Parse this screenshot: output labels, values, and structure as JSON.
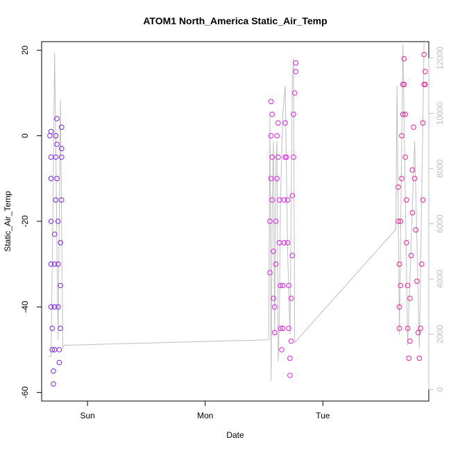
{
  "chart_data": {
    "type": "scatter",
    "title": "ATOM1 North_America Static_Air_Temp",
    "xlabel": "Date",
    "ylabel": "Static_Air_Temp",
    "x_ticks": [
      "Sun",
      "Mon",
      "Tue"
    ],
    "y_ticks": [
      -60,
      -40,
      -20,
      0,
      20
    ],
    "ylim": [
      -62,
      22
    ],
    "y2_ticks": [
      0,
      2000,
      4000,
      6000,
      8000,
      10000,
      12000
    ],
    "y2lim": [
      -420,
      12600
    ],
    "xlim_days": [
      -0.39,
      2.9
    ],
    "colors": {
      "flight1": "#7a1ff5",
      "flight2": "#e21aed",
      "flight3": "#f51b9b",
      "altitude_line": "#bfbfbf"
    },
    "series": [
      {
        "points": [
          [
            -0.32,
            0
          ],
          [
            -0.31,
            1
          ],
          [
            -0.31,
            -5
          ],
          [
            -0.31,
            -10
          ],
          [
            -0.31,
            -20
          ],
          [
            -0.31,
            -30
          ],
          [
            -0.31,
            -40
          ],
          [
            -0.3,
            -45
          ],
          [
            -0.3,
            -50
          ],
          [
            -0.29,
            -55
          ],
          [
            -0.29,
            -58
          ],
          [
            -0.28,
            -50
          ],
          [
            -0.28,
            -40
          ],
          [
            -0.28,
            -30
          ],
          [
            -0.28,
            -23
          ],
          [
            -0.27,
            -15
          ],
          [
            -0.27,
            -5
          ],
          [
            -0.27,
            0
          ],
          [
            -0.26,
            4
          ],
          [
            -0.26,
            -2
          ],
          [
            -0.26,
            -10
          ],
          [
            -0.25,
            -20
          ],
          [
            -0.25,
            -30
          ],
          [
            -0.25,
            -40
          ],
          [
            -0.24,
            -50
          ],
          [
            -0.24,
            -53
          ],
          [
            -0.23,
            -45
          ],
          [
            -0.23,
            -35
          ],
          [
            -0.23,
            -25
          ],
          [
            -0.22,
            -15
          ],
          [
            -0.22,
            -5
          ],
          [
            -0.22,
            2
          ],
          [
            -0.22,
            -3
          ]
        ]
      },
      {
        "points": [
          [
            1.55,
            -32
          ],
          [
            1.55,
            -20
          ],
          [
            1.56,
            -10
          ],
          [
            1.56,
            0
          ],
          [
            1.56,
            8
          ],
          [
            1.57,
            5
          ],
          [
            1.57,
            -5
          ],
          [
            1.57,
            -15
          ],
          [
            1.58,
            -27
          ],
          [
            1.58,
            -38
          ],
          [
            1.59,
            -46
          ],
          [
            1.59,
            -40
          ],
          [
            1.6,
            -30
          ],
          [
            1.6,
            -20
          ],
          [
            1.61,
            -10
          ],
          [
            1.61,
            0
          ],
          [
            1.62,
            3
          ],
          [
            1.62,
            -5
          ],
          [
            1.63,
            -15
          ],
          [
            1.63,
            -25
          ],
          [
            1.64,
            -35
          ],
          [
            1.64,
            -45
          ],
          [
            1.65,
            -50
          ],
          [
            1.66,
            -45
          ],
          [
            1.66,
            -35
          ],
          [
            1.67,
            -25
          ],
          [
            1.67,
            -15
          ],
          [
            1.68,
            -5
          ],
          [
            1.68,
            3
          ],
          [
            1.69,
            -5
          ],
          [
            1.7,
            -15
          ],
          [
            1.7,
            -25
          ],
          [
            1.71,
            -35
          ],
          [
            1.71,
            -45
          ],
          [
            1.72,
            -52
          ],
          [
            1.72,
            -56
          ],
          [
            1.73,
            -48
          ],
          [
            1.73,
            -38
          ],
          [
            1.74,
            -28
          ],
          [
            1.74,
            -14
          ],
          [
            1.75,
            -5
          ],
          [
            1.75,
            5
          ],
          [
            1.76,
            10
          ],
          [
            1.77,
            15
          ],
          [
            1.77,
            17
          ]
        ]
      },
      {
        "points": [
          [
            2.64,
            -12
          ],
          [
            2.64,
            -20
          ],
          [
            2.65,
            -30
          ],
          [
            2.65,
            -40
          ],
          [
            2.65,
            -45
          ],
          [
            2.66,
            -35
          ],
          [
            2.66,
            -20
          ],
          [
            2.67,
            -10
          ],
          [
            2.67,
            0
          ],
          [
            2.68,
            5
          ],
          [
            2.68,
            12
          ],
          [
            2.69,
            18
          ],
          [
            2.69,
            12
          ],
          [
            2.7,
            5
          ],
          [
            2.7,
            -5
          ],
          [
            2.71,
            -15
          ],
          [
            2.71,
            -25
          ],
          [
            2.72,
            -35
          ],
          [
            2.72,
            -45
          ],
          [
            2.73,
            -52
          ],
          [
            2.74,
            -48
          ],
          [
            2.74,
            -38
          ],
          [
            2.75,
            -28
          ],
          [
            2.76,
            -18
          ],
          [
            2.76,
            -8
          ],
          [
            2.77,
            2
          ],
          [
            2.78,
            -10
          ],
          [
            2.79,
            -22
          ],
          [
            2.8,
            -34
          ],
          [
            2.81,
            -46
          ],
          [
            2.82,
            -52
          ],
          [
            2.83,
            -45
          ],
          [
            2.84,
            -30
          ],
          [
            2.85,
            -15
          ],
          [
            2.85,
            3
          ],
          [
            2.86,
            12
          ],
          [
            2.86,
            19
          ],
          [
            2.87,
            15
          ],
          [
            2.87,
            12
          ]
        ]
      }
    ],
    "altitude_line": [
      [
        -0.33,
        1200
      ],
      [
        -0.31,
        1200
      ],
      [
        -0.29,
        8000
      ],
      [
        -0.28,
        12200
      ],
      [
        -0.27,
        9000
      ],
      [
        -0.26,
        5000
      ],
      [
        -0.25,
        1800
      ],
      [
        -0.23,
        10500
      ],
      [
        -0.21,
        1500
      ],
      [
        -0.2,
        1600
      ],
      [
        1.54,
        1800
      ],
      [
        1.55,
        10000
      ],
      [
        1.56,
        300
      ],
      [
        1.57,
        7000
      ],
      [
        1.58,
        9000
      ],
      [
        1.59,
        2000
      ],
      [
        1.6,
        8000
      ],
      [
        1.61,
        9000
      ],
      [
        1.62,
        1000
      ],
      [
        1.63,
        2500
      ],
      [
        1.64,
        7000
      ],
      [
        1.66,
        10000
      ],
      [
        1.68,
        11000
      ],
      [
        1.7,
        5000
      ],
      [
        1.72,
        2000
      ],
      [
        1.74,
        11200
      ],
      [
        1.75,
        12000
      ],
      [
        1.76,
        1700
      ],
      [
        2.62,
        5800
      ],
      [
        2.63,
        11000
      ],
      [
        2.65,
        2000
      ],
      [
        2.68,
        12500
      ],
      [
        2.72,
        1600
      ],
      [
        2.78,
        9000
      ],
      [
        2.82,
        1500
      ],
      [
        2.86,
        12600
      ]
    ]
  }
}
